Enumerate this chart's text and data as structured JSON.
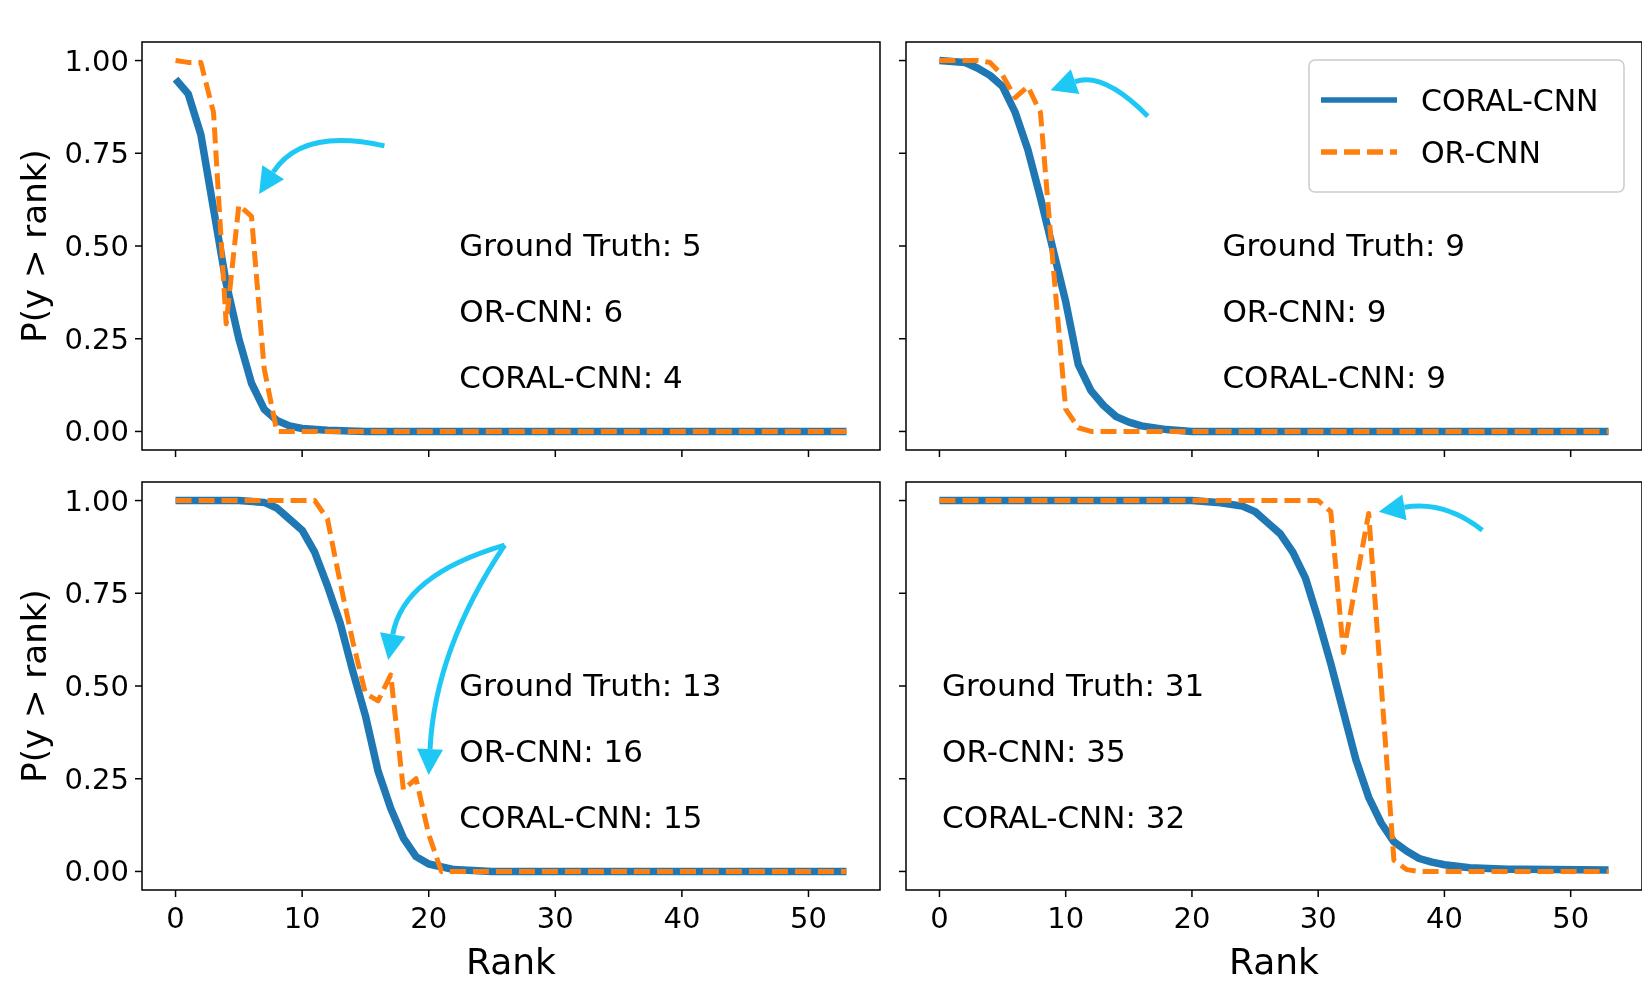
{
  "chart_data": [
    {
      "type": "line",
      "ylabel": "P(y > rank)",
      "xlim": [
        -2.65,
        55.65
      ],
      "ylim": [
        -0.05,
        1.05
      ],
      "xticks": [
        0,
        10,
        20,
        30,
        40,
        50
      ],
      "yticks": [
        {
          "value": 0,
          "label": "0.00"
        },
        {
          "value": 0.25,
          "label": "0.25"
        },
        {
          "value": 0.5,
          "label": "0.50"
        },
        {
          "value": 0.75,
          "label": "0.75"
        },
        {
          "value": 1,
          "label": "1.00"
        }
      ],
      "tick_labels": "y",
      "legend": false,
      "annotations": [
        "Ground Truth: 5",
        "OR-CNN: 6",
        "CORAL-CNN: 4"
      ],
      "series": [
        {
          "color": "#1f77b4",
          "line_style": "solid",
          "x": [
            0,
            1,
            2,
            3,
            4,
            5,
            6,
            7,
            8,
            9,
            10,
            12,
            15,
            53
          ],
          "values": [
            0.95,
            0.91,
            0.8,
            0.6,
            0.4,
            0.25,
            0.13,
            0.06,
            0.03,
            0.015,
            0.008,
            0.003,
            0,
            0
          ]
        },
        {
          "color": "#ff7f0e",
          "line_style": "dashed",
          "x": [
            0,
            1,
            2,
            3,
            4,
            5,
            6,
            7,
            8,
            9,
            53
          ],
          "values": [
            1,
            0.995,
            0.995,
            0.86,
            0.29,
            0.61,
            0.58,
            0.17,
            0,
            0,
            0
          ]
        }
      ]
    },
    {
      "type": "line",
      "xlim": [
        -2.65,
        55.65
      ],
      "ylim": [
        -0.05,
        1.05
      ],
      "xticks": [
        0,
        10,
        20,
        30,
        40,
        50
      ],
      "yticks": [
        {
          "value": 0,
          "label": null
        },
        {
          "value": 0.25,
          "label": null
        },
        {
          "value": 0.5,
          "label": null
        },
        {
          "value": 0.75,
          "label": null
        },
        {
          "value": 1,
          "label": null
        }
      ],
      "tick_labels": false,
      "legend": "top right",
      "annotations": [
        "Ground Truth: 9",
        "OR-CNN: 9",
        "CORAL-CNN: 9"
      ],
      "series": [
        {
          "name": "CORAL-CNN",
          "color": "#1f77b4",
          "line_style": "solid",
          "x": [
            0,
            2,
            3,
            4,
            5,
            6,
            7,
            8,
            9,
            10,
            11,
            12,
            13,
            14,
            15,
            16,
            18,
            20,
            53
          ],
          "values": [
            1,
            0.995,
            0.98,
            0.96,
            0.93,
            0.86,
            0.76,
            0.63,
            0.49,
            0.35,
            0.18,
            0.11,
            0.07,
            0.04,
            0.025,
            0.015,
            0.005,
            0,
            0
          ]
        },
        {
          "name": "OR-CNN",
          "color": "#ff7f0e",
          "line_style": "dashed",
          "x": [
            0,
            3,
            4,
            5,
            6,
            7,
            8,
            9,
            10,
            11,
            12,
            53
          ],
          "values": [
            1,
            1,
            0.995,
            0.96,
            0.9,
            0.93,
            0.86,
            0.45,
            0.06,
            0.01,
            0,
            0
          ]
        }
      ]
    },
    {
      "type": "line",
      "xlabel": "Rank",
      "ylabel": "P(y > rank)",
      "xlim": [
        -2.65,
        55.65
      ],
      "ylim": [
        -0.05,
        1.05
      ],
      "xticks": [
        0,
        10,
        20,
        30,
        40,
        50
      ],
      "yticks": [
        {
          "value": 0,
          "label": "0.00"
        },
        {
          "value": 0.25,
          "label": "0.25"
        },
        {
          "value": 0.5,
          "label": "0.50"
        },
        {
          "value": 0.75,
          "label": "0.75"
        },
        {
          "value": 1,
          "label": "1.00"
        }
      ],
      "legend": false,
      "annotations": [
        "Ground Truth: 13",
        "OR-CNN: 16",
        "CORAL-CNN: 15"
      ],
      "series": [
        {
          "color": "#1f77b4",
          "line_style": "solid",
          "x": [
            0,
            5,
            7,
            8,
            9,
            10,
            11,
            12,
            13,
            14,
            15,
            16,
            17,
            18,
            19,
            20,
            22,
            25,
            53
          ],
          "values": [
            1,
            1,
            0.995,
            0.98,
            0.95,
            0.92,
            0.86,
            0.77,
            0.67,
            0.54,
            0.42,
            0.27,
            0.17,
            0.09,
            0.04,
            0.02,
            0.005,
            0,
            0
          ]
        },
        {
          "color": "#ff7f0e",
          "line_style": "dashed",
          "x": [
            0,
            11,
            12,
            13,
            14,
            15,
            16,
            17,
            18,
            19,
            20,
            21,
            53
          ],
          "values": [
            1,
            1,
            0.95,
            0.78,
            0.62,
            0.48,
            0.46,
            0.53,
            0.22,
            0.25,
            0.1,
            0,
            0
          ]
        }
      ]
    },
    {
      "type": "line",
      "xlabel": "Rank",
      "xlim": [
        -2.65,
        55.65
      ],
      "ylim": [
        -0.05,
        1.05
      ],
      "xticks": [
        0,
        10,
        20,
        30,
        40,
        50
      ],
      "yticks": [
        {
          "value": 0,
          "label": null
        },
        {
          "value": 0.25,
          "label": null
        },
        {
          "value": 0.5,
          "label": null
        },
        {
          "value": 0.75,
          "label": null
        },
        {
          "value": 1,
          "label": null
        }
      ],
      "tick_labels": "x",
      "legend": false,
      "annotations": [
        "Ground Truth: 31",
        "OR-CNN: 35",
        "CORAL-CNN: 32"
      ],
      "series": [
        {
          "color": "#1f77b4",
          "line_style": "solid",
          "x": [
            0,
            20,
            22,
            24,
            25,
            26,
            27,
            28,
            29,
            30,
            31,
            32,
            33,
            34,
            35,
            36,
            37,
            38,
            39,
            40,
            42,
            45,
            53
          ],
          "values": [
            1,
            1,
            0.995,
            0.985,
            0.97,
            0.94,
            0.91,
            0.86,
            0.79,
            0.68,
            0.56,
            0.43,
            0.3,
            0.2,
            0.13,
            0.08,
            0.055,
            0.035,
            0.025,
            0.018,
            0.01,
            0.006,
            0.004
          ]
        },
        {
          "color": "#ff7f0e",
          "line_style": "dashed",
          "x": [
            0,
            30,
            31,
            32,
            33,
            34,
            35,
            36,
            37,
            38,
            53
          ],
          "values": [
            1,
            1,
            0.97,
            0.59,
            0.78,
            0.965,
            0.5,
            0.03,
            0.005,
            0,
            0
          ]
        }
      ]
    }
  ]
}
